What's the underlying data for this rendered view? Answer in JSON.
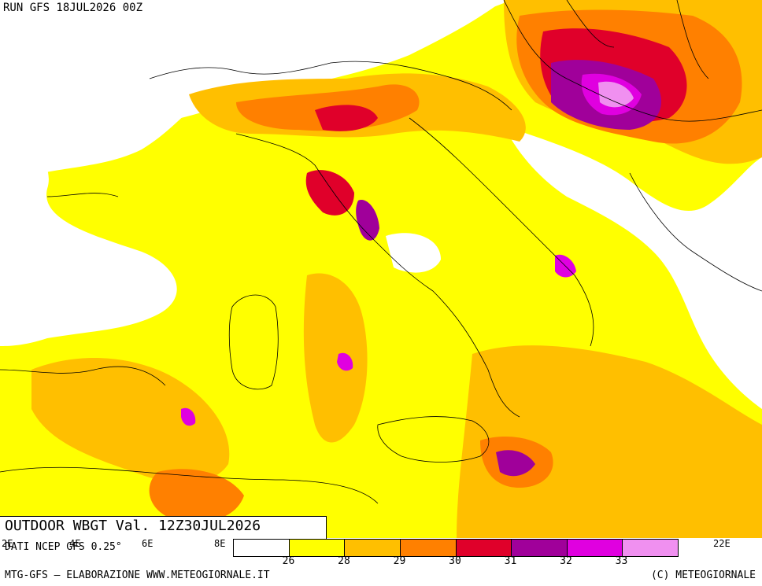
{
  "header": {
    "run": "RUN GFS 18JUL2026 00Z"
  },
  "product": {
    "title": "OUTDOOR WBGT Val. 12Z30JUL2026"
  },
  "source": {
    "text": "DATI NCEP GFS 0.25°"
  },
  "axis": {
    "ticks": [
      "2E",
      "4E",
      "6E",
      "8E",
      "22E"
    ]
  },
  "legend": {
    "colors": [
      "#ffffff",
      "#ffff00",
      "#ffbf00",
      "#ff8000",
      "#e0002a",
      "#a0009a",
      "#e000e0",
      "#f090f0"
    ],
    "labels": [
      "26",
      "28",
      "29",
      "30",
      "31",
      "32",
      "33"
    ]
  },
  "footer": {
    "left": "MTG-GFS – ELABORAZIONE WWW.METEOGIORNALE.IT",
    "right": "(C) METEOGIORNALE"
  }
}
